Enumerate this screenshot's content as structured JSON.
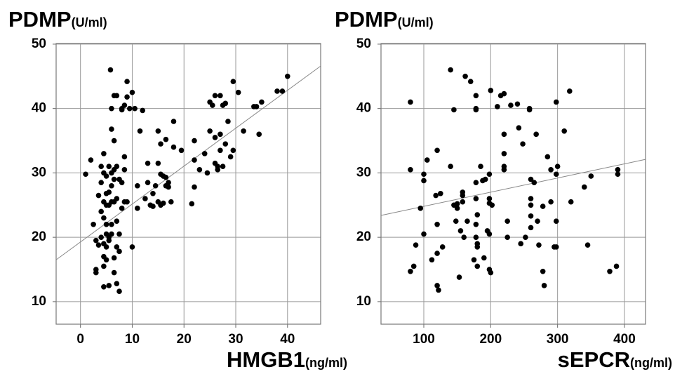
{
  "chart_data": [
    {
      "type": "scatter",
      "y_label": "PDMP",
      "y_label_unit": "(U/ml)",
      "x_label": "HMGB1",
      "x_label_unit": "(ng/ml)",
      "color": "#000000",
      "grid": true,
      "xlim": [
        -4.7,
        46.4
      ],
      "ylim": [
        6.5,
        50.1
      ],
      "xticks": [
        0,
        10,
        20,
        30,
        40
      ],
      "yticks": [
        10,
        20,
        30,
        40,
        50
      ],
      "trend_line": {
        "x": [
          -4.7,
          46.4
        ],
        "y": [
          16.5,
          46.6
        ]
      },
      "x": [
        1,
        2,
        2.5,
        3,
        3,
        3,
        3.5,
        3.5,
        4,
        4,
        4,
        4,
        4.5,
        4.5,
        4.5,
        4.5,
        4.5,
        4.5,
        4.5,
        4.5,
        5,
        5,
        5,
        5,
        5,
        5,
        5,
        5.5,
        5.5,
        5.5,
        5.5,
        5.5,
        5.5,
        5.8,
        6,
        6,
        6,
        6,
        6,
        6,
        6,
        6.5,
        6.5,
        6.5,
        6.5,
        6.5,
        6.5,
        6.5,
        7,
        7,
        7,
        7,
        7,
        7,
        7.5,
        7.5,
        7.5,
        7.5,
        8,
        8,
        8,
        8,
        8.5,
        8.5,
        8.5,
        8.5,
        9,
        9,
        9,
        9.5,
        10,
        10.5,
        10,
        11,
        11,
        11.5,
        12,
        12.5,
        13,
        13,
        13.5,
        14,
        14,
        14.5,
        15,
        15,
        15,
        15.5,
        15.5,
        15.5,
        16,
        16,
        16.5,
        16.5,
        16.5,
        17,
        17,
        17.5,
        18,
        18,
        19.5,
        21.5,
        22,
        22,
        22,
        23,
        24,
        24.5,
        25,
        25,
        25.5,
        26,
        26,
        26,
        26.5,
        26.5,
        27,
        27,
        27,
        27.5,
        27.5,
        28,
        28,
        28.5,
        29,
        29.5,
        29.5,
        30.5,
        31.5,
        33.5,
        34,
        34.5,
        35,
        38,
        39,
        40
      ],
      "values": [
        29.8,
        32,
        22,
        14.5,
        15,
        19.5,
        18.8,
        26.5,
        20,
        24,
        28.5,
        31,
        33,
        30,
        25.5,
        23,
        19,
        17,
        15.5,
        12.3,
        25,
        26.8,
        29.5,
        22,
        18.5,
        16.5,
        20.5,
        12.5,
        19.5,
        27,
        31,
        25,
        20,
        46,
        40,
        36.8,
        30,
        28,
        25.5,
        22,
        20.5,
        42,
        35,
        30.5,
        29,
        25.5,
        16.8,
        14.5,
        42,
        31,
        26,
        22.5,
        18.5,
        12.8,
        11.6,
        29,
        20.5,
        17.8,
        40,
        39.8,
        28.5,
        24.5,
        40.5,
        32.5,
        30.5,
        25.5,
        44.2,
        41.8,
        25.5,
        40,
        42.5,
        40,
        18.5,
        28,
        24.5,
        36.5,
        39.7,
        26,
        31.5,
        28.5,
        25,
        24.8,
        26.8,
        28,
        36.5,
        31.5,
        25.5,
        34.5,
        29.8,
        25,
        29.5,
        25.3,
        29.3,
        28,
        35.2,
        27.8,
        28.5,
        25.5,
        38,
        34,
        33.5,
        25.2,
        35,
        32,
        27.8,
        30.5,
        33,
        30,
        41,
        36.5,
        40.5,
        42,
        35.5,
        31.5,
        30.5,
        31,
        42,
        33.5,
        36,
        40.5,
        31,
        40.8,
        34.5,
        38,
        32.5,
        44.2,
        33.5,
        42.5,
        36.5,
        40.3,
        40.3,
        36,
        41,
        42.7,
        42.7,
        45
      ]
    },
    {
      "type": "scatter",
      "y_label": "PDMP",
      "y_label_unit": "(U/ml)",
      "x_label": "sEPCR",
      "x_label_unit": "(ng/ml)",
      "color": "#000000",
      "grid": true,
      "xlim": [
        36,
        431.5
      ],
      "ylim": [
        6.5,
        50.1
      ],
      "xticks": [
        100,
        200,
        300,
        400
      ],
      "yticks": [
        10,
        20,
        30,
        40,
        50
      ],
      "trend_line": {
        "x": [
          36,
          431.5
        ],
        "y": [
          23.4,
          32.1
        ]
      },
      "x": [
        80,
        80,
        80,
        85,
        88,
        95,
        100,
        100,
        100,
        105,
        112,
        118,
        120,
        120,
        120,
        122,
        120,
        125,
        128,
        140,
        140,
        145,
        145,
        148,
        150,
        150,
        153,
        155,
        158,
        158,
        158,
        160,
        162,
        165,
        170,
        175,
        178,
        178,
        178,
        178,
        178,
        178,
        178,
        180,
        180,
        180,
        180,
        185,
        188,
        190,
        192,
        195,
        198,
        198,
        198,
        198,
        198,
        200,
        200,
        202,
        210,
        215,
        220,
        220,
        220,
        220,
        220,
        225,
        225,
        230,
        240,
        242,
        245,
        248,
        252,
        258,
        258,
        260,
        260,
        260,
        260,
        260,
        265,
        268,
        270,
        272,
        278,
        280,
        278,
        285,
        290,
        290,
        295,
        298,
        298,
        298,
        298,
        300,
        310,
        318,
        320,
        340,
        345,
        350,
        378,
        388,
        390,
        390
      ],
      "values": [
        41,
        30.5,
        14.7,
        15.5,
        18.8,
        24.5,
        29.8,
        28.8,
        20.5,
        32,
        16.5,
        26.5,
        33.5,
        17.5,
        12.5,
        11.8,
        22,
        26.8,
        18.5,
        46,
        31,
        39.8,
        25,
        22.5,
        25.2,
        24.5,
        13.8,
        21,
        26.5,
        27,
        25.5,
        20,
        45,
        22.5,
        44.2,
        16.5,
        42,
        40,
        39.8,
        28.5,
        26,
        22,
        20,
        23.5,
        19,
        18.5,
        15.5,
        31,
        28.8,
        16.8,
        29,
        21,
        29.8,
        26,
        25.3,
        20.5,
        15,
        42.8,
        14.5,
        25,
        40.3,
        42,
        42.3,
        36,
        33,
        31,
        30.5,
        20,
        22.5,
        40.5,
        40.7,
        37,
        19,
        34.5,
        20,
        40,
        39.8,
        29,
        26,
        25,
        23.3,
        21.5,
        28.5,
        36,
        22.5,
        18.8,
        14.7,
        12.5,
        24.8,
        32.5,
        30.5,
        25.5,
        18.5,
        18.5,
        41,
        29.8,
        22.5,
        31,
        36.5,
        42.7,
        25.5,
        27.8,
        18.8,
        29.5,
        14.7,
        15.5,
        30.5,
        29.8
      ]
    }
  ]
}
